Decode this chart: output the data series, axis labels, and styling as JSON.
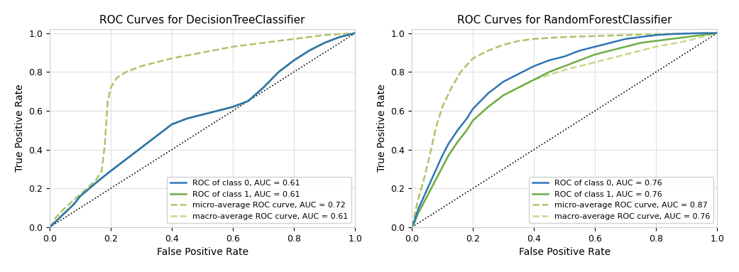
{
  "dt_title": "ROC Curves for DecisionTreeClassifier",
  "rf_title": "ROC Curves for RandomForestClassifier",
  "xlabel": "False Positive Rate",
  "ylabel": "True Positive Rate",
  "color_blue": "#2e75b6",
  "color_green_solid": "#70ad47",
  "color_green_micro": "#a9c56a",
  "color_green_macro": "#c9d98a",
  "dt_legend": [
    "ROC of class 0, AUC = 0.61",
    "ROC of class 1, AUC = 0.61",
    "micro-average ROC curve, AUC = 0.72",
    "macro-average ROC curve, AUC = 0.61"
  ],
  "rf_legend": [
    "ROC of class 0, AUC = 0.76",
    "ROC of class 1, AUC = 0.76",
    "micro-average ROC curve, AUC = 0.87",
    "macro-average ROC curve, AUC = 0.76"
  ],
  "dt_class0_fpr": [
    0.0,
    0.02,
    0.04,
    0.06,
    0.08,
    0.1,
    0.13,
    0.16,
    0.2,
    0.25,
    0.3,
    0.35,
    0.4,
    0.45,
    0.5,
    0.55,
    0.6,
    0.65,
    0.7,
    0.75,
    0.8,
    0.85,
    0.9,
    0.95,
    1.0
  ],
  "dt_class0_tpr": [
    0.0,
    0.03,
    0.06,
    0.09,
    0.12,
    0.16,
    0.2,
    0.24,
    0.29,
    0.35,
    0.41,
    0.47,
    0.53,
    0.56,
    0.58,
    0.6,
    0.62,
    0.65,
    0.72,
    0.8,
    0.86,
    0.91,
    0.95,
    0.98,
    1.0
  ],
  "dt_class1_fpr": [
    0.0,
    0.02,
    0.04,
    0.06,
    0.08,
    0.1,
    0.13,
    0.16,
    0.2,
    0.25,
    0.3,
    0.35,
    0.4,
    0.45,
    0.5,
    0.55,
    0.6,
    0.65,
    0.7,
    0.75,
    0.8,
    0.85,
    0.9,
    0.95,
    1.0
  ],
  "dt_class1_tpr": [
    0.0,
    0.03,
    0.06,
    0.09,
    0.12,
    0.16,
    0.2,
    0.24,
    0.29,
    0.35,
    0.41,
    0.47,
    0.53,
    0.56,
    0.58,
    0.6,
    0.62,
    0.65,
    0.72,
    0.8,
    0.86,
    0.91,
    0.95,
    0.98,
    1.0
  ],
  "dt_micro_fpr": [
    0.0,
    0.005,
    0.01,
    0.015,
    0.02,
    0.05,
    0.1,
    0.15,
    0.17,
    0.18,
    0.19,
    0.2,
    0.22,
    0.25,
    0.3,
    0.35,
    0.4,
    0.5,
    0.6,
    0.7,
    0.8,
    0.9,
    1.0
  ],
  "dt_micro_tpr": [
    0.0,
    0.01,
    0.02,
    0.04,
    0.05,
    0.1,
    0.17,
    0.24,
    0.29,
    0.42,
    0.65,
    0.72,
    0.77,
    0.8,
    0.83,
    0.85,
    0.87,
    0.9,
    0.93,
    0.95,
    0.97,
    0.99,
    1.0
  ],
  "dt_macro_fpr": [
    0.0,
    0.02,
    0.04,
    0.06,
    0.08,
    0.1,
    0.13,
    0.16,
    0.2,
    0.25,
    0.3,
    0.35,
    0.4,
    0.45,
    0.5,
    0.55,
    0.6,
    0.65,
    0.7,
    0.75,
    0.8,
    0.85,
    0.9,
    0.95,
    1.0
  ],
  "dt_macro_tpr": [
    0.0,
    0.03,
    0.06,
    0.09,
    0.12,
    0.16,
    0.2,
    0.24,
    0.29,
    0.35,
    0.41,
    0.47,
    0.53,
    0.56,
    0.58,
    0.6,
    0.62,
    0.65,
    0.72,
    0.8,
    0.86,
    0.91,
    0.95,
    0.98,
    1.0
  ],
  "rf_class0_fpr": [
    0.0,
    0.01,
    0.02,
    0.04,
    0.06,
    0.08,
    0.1,
    0.12,
    0.15,
    0.18,
    0.2,
    0.25,
    0.3,
    0.35,
    0.4,
    0.45,
    0.5,
    0.55,
    0.6,
    0.65,
    0.7,
    0.75,
    0.8,
    0.85,
    0.9,
    0.95,
    1.0
  ],
  "rf_class0_tpr": [
    0.0,
    0.04,
    0.09,
    0.16,
    0.23,
    0.3,
    0.37,
    0.43,
    0.5,
    0.56,
    0.61,
    0.69,
    0.75,
    0.79,
    0.83,
    0.86,
    0.88,
    0.91,
    0.93,
    0.95,
    0.97,
    0.98,
    0.99,
    0.995,
    0.998,
    1.0,
    1.0
  ],
  "rf_class1_fpr": [
    0.0,
    0.01,
    0.02,
    0.04,
    0.06,
    0.08,
    0.1,
    0.12,
    0.15,
    0.18,
    0.2,
    0.25,
    0.3,
    0.35,
    0.4,
    0.45,
    0.5,
    0.55,
    0.6,
    0.65,
    0.7,
    0.75,
    0.8,
    0.85,
    0.9,
    0.95,
    1.0
  ],
  "rf_class1_tpr": [
    0.0,
    0.03,
    0.07,
    0.13,
    0.19,
    0.25,
    0.31,
    0.37,
    0.44,
    0.5,
    0.55,
    0.62,
    0.68,
    0.72,
    0.76,
    0.8,
    0.83,
    0.86,
    0.89,
    0.91,
    0.93,
    0.95,
    0.96,
    0.97,
    0.98,
    0.99,
    1.0
  ],
  "rf_micro_fpr": [
    0.0,
    0.005,
    0.01,
    0.02,
    0.04,
    0.06,
    0.08,
    0.1,
    0.13,
    0.16,
    0.2,
    0.25,
    0.3,
    0.35,
    0.4,
    0.5,
    0.6,
    0.7,
    0.8,
    0.9,
    1.0
  ],
  "rf_micro_tpr": [
    0.0,
    0.03,
    0.07,
    0.14,
    0.25,
    0.38,
    0.52,
    0.62,
    0.72,
    0.8,
    0.87,
    0.91,
    0.94,
    0.96,
    0.97,
    0.98,
    0.985,
    0.99,
    0.995,
    0.998,
    1.0
  ],
  "rf_macro_fpr": [
    0.0,
    0.01,
    0.02,
    0.04,
    0.06,
    0.08,
    0.1,
    0.12,
    0.15,
    0.18,
    0.2,
    0.25,
    0.3,
    0.35,
    0.4,
    0.5,
    0.6,
    0.7,
    0.8,
    0.9,
    1.0
  ],
  "rf_macro_tpr": [
    0.0,
    0.03,
    0.07,
    0.13,
    0.19,
    0.25,
    0.31,
    0.37,
    0.44,
    0.5,
    0.55,
    0.62,
    0.68,
    0.72,
    0.76,
    0.81,
    0.85,
    0.89,
    0.93,
    0.96,
    1.0
  ],
  "bg_color": "#ffffff",
  "grid_color": "#e0e0e0",
  "legend_fontsize": 8,
  "axis_label_fontsize": 10,
  "title_fontsize": 11
}
